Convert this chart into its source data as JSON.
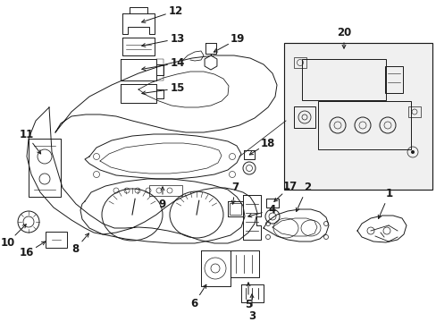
{
  "bg_color": "#ffffff",
  "line_color": "#1a1a1a",
  "fig_width": 4.89,
  "fig_height": 3.6,
  "dpi": 100,
  "label_font": 8.5,
  "lw": 0.7
}
